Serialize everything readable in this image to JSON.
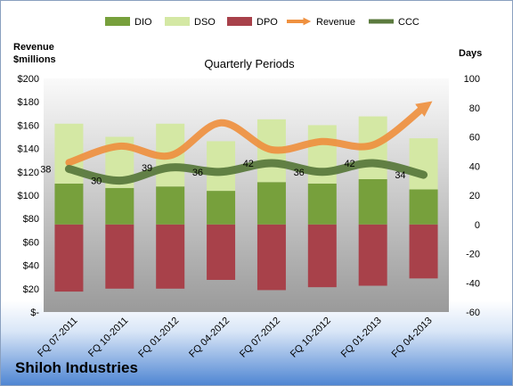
{
  "company": "Shiloh Industries",
  "chart_data": {
    "type": "bar",
    "title": "Quarterly Periods",
    "left_axis_label_line1": "Revenue",
    "left_axis_label_line2": "$millions",
    "right_axis_label": "Days",
    "categories": [
      "FQ 07-2011",
      "FQ 10-2011",
      "FQ 01-2012",
      "FQ 04-2012",
      "FQ 07-2012",
      "FQ 10-2012",
      "FQ 01-2013",
      "FQ 04-2013"
    ],
    "left_ticks": [
      "$200",
      "$180",
      "$160",
      "$140",
      "$120",
      "$100",
      "$80",
      "$60",
      "$40",
      "$20",
      "$-"
    ],
    "right_ticks": [
      "100",
      "80",
      "60",
      "40",
      "20",
      "0",
      "-20",
      "-40",
      "-60"
    ],
    "left_ylim": [
      0,
      200
    ],
    "right_ylim": [
      -60,
      100
    ],
    "grid": false,
    "legend_placement": "top",
    "series": [
      {
        "name": "DIO",
        "axis": "right",
        "color": "#77a03c",
        "values": [
          28,
          25,
          26,
          23,
          29,
          28,
          31,
          24
        ]
      },
      {
        "name": "DSO",
        "axis": "right",
        "color": "#d4e8a4",
        "values": [
          41,
          35,
          43,
          34,
          43,
          40,
          43,
          35
        ]
      },
      {
        "name": "DPO",
        "axis": "right",
        "color": "#a8414a",
        "values": [
          -46,
          -44,
          -44,
          -38,
          -45,
          -43,
          -42,
          -37
        ]
      },
      {
        "name": "Revenue",
        "axis": "left",
        "color": "#ef9140",
        "values": [
          128,
          142,
          134,
          162,
          139,
          146,
          143,
          175
        ]
      },
      {
        "name": "CCC",
        "axis": "right",
        "color": "#5b7a3e",
        "values": [
          38,
          30,
          39,
          36,
          42,
          36,
          42,
          34
        ]
      }
    ],
    "ccc_labels": [
      "38",
      "30",
      "39",
      "36",
      "42",
      "36",
      "42",
      "34"
    ]
  }
}
